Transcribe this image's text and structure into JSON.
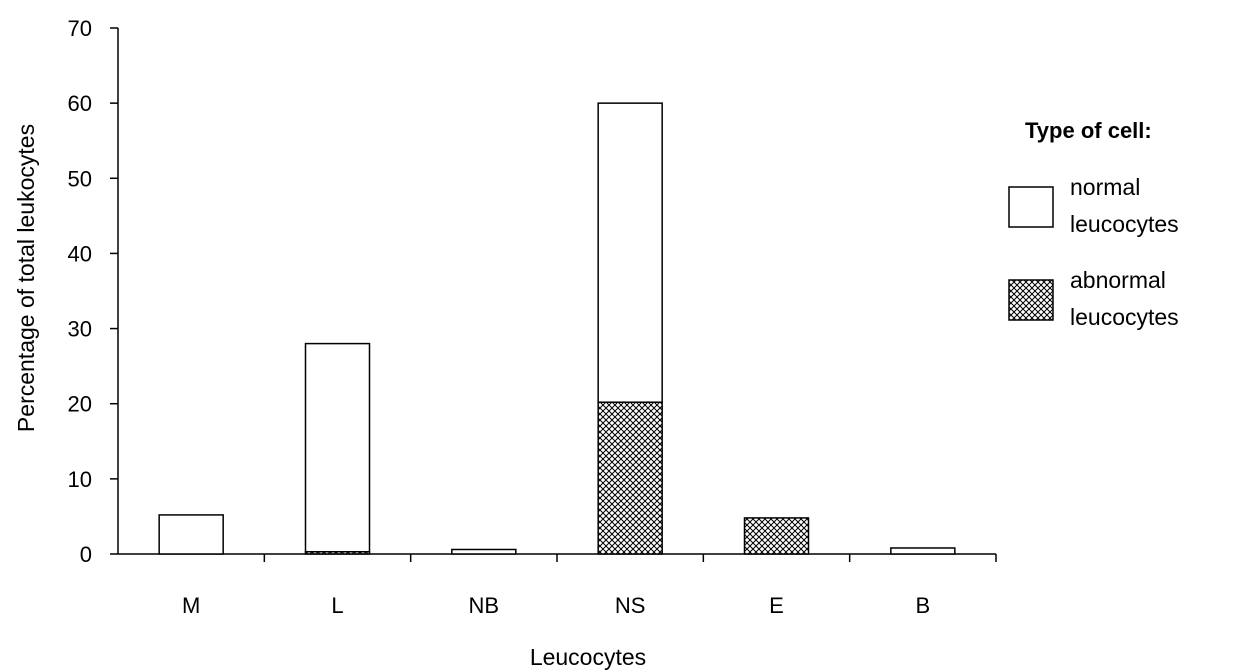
{
  "chart_data": {
    "type": "bar",
    "stacked": true,
    "title": "",
    "xlabel": "Leucocytes",
    "ylabel": "Percentage of total leukocytes",
    "ylim": [
      0,
      70
    ],
    "yticks": [
      0,
      10,
      20,
      30,
      40,
      50,
      60,
      70
    ],
    "categories": [
      "M",
      "L",
      "NB",
      "NS",
      "E",
      "B"
    ],
    "series": [
      {
        "name": "abnormal leucocytes",
        "pattern": "crosshatch",
        "values": [
          0,
          0.3,
          0,
          20.2,
          4.8,
          0
        ]
      },
      {
        "name": "normal leucocytes",
        "pattern": "none",
        "values": [
          5.2,
          27.7,
          0.6,
          39.8,
          0,
          0.8
        ]
      }
    ],
    "legend": {
      "title": "Type of cell:",
      "position": "right",
      "entries": [
        {
          "label_line1": "normal",
          "label_line2": "leucocytes"
        },
        {
          "label_line1": "abnormal",
          "label_line2": "leucocytes"
        }
      ]
    },
    "grid": false,
    "colors": {
      "fill": "#ffffff",
      "stroke": "#000000",
      "hatch": "#000000"
    }
  }
}
